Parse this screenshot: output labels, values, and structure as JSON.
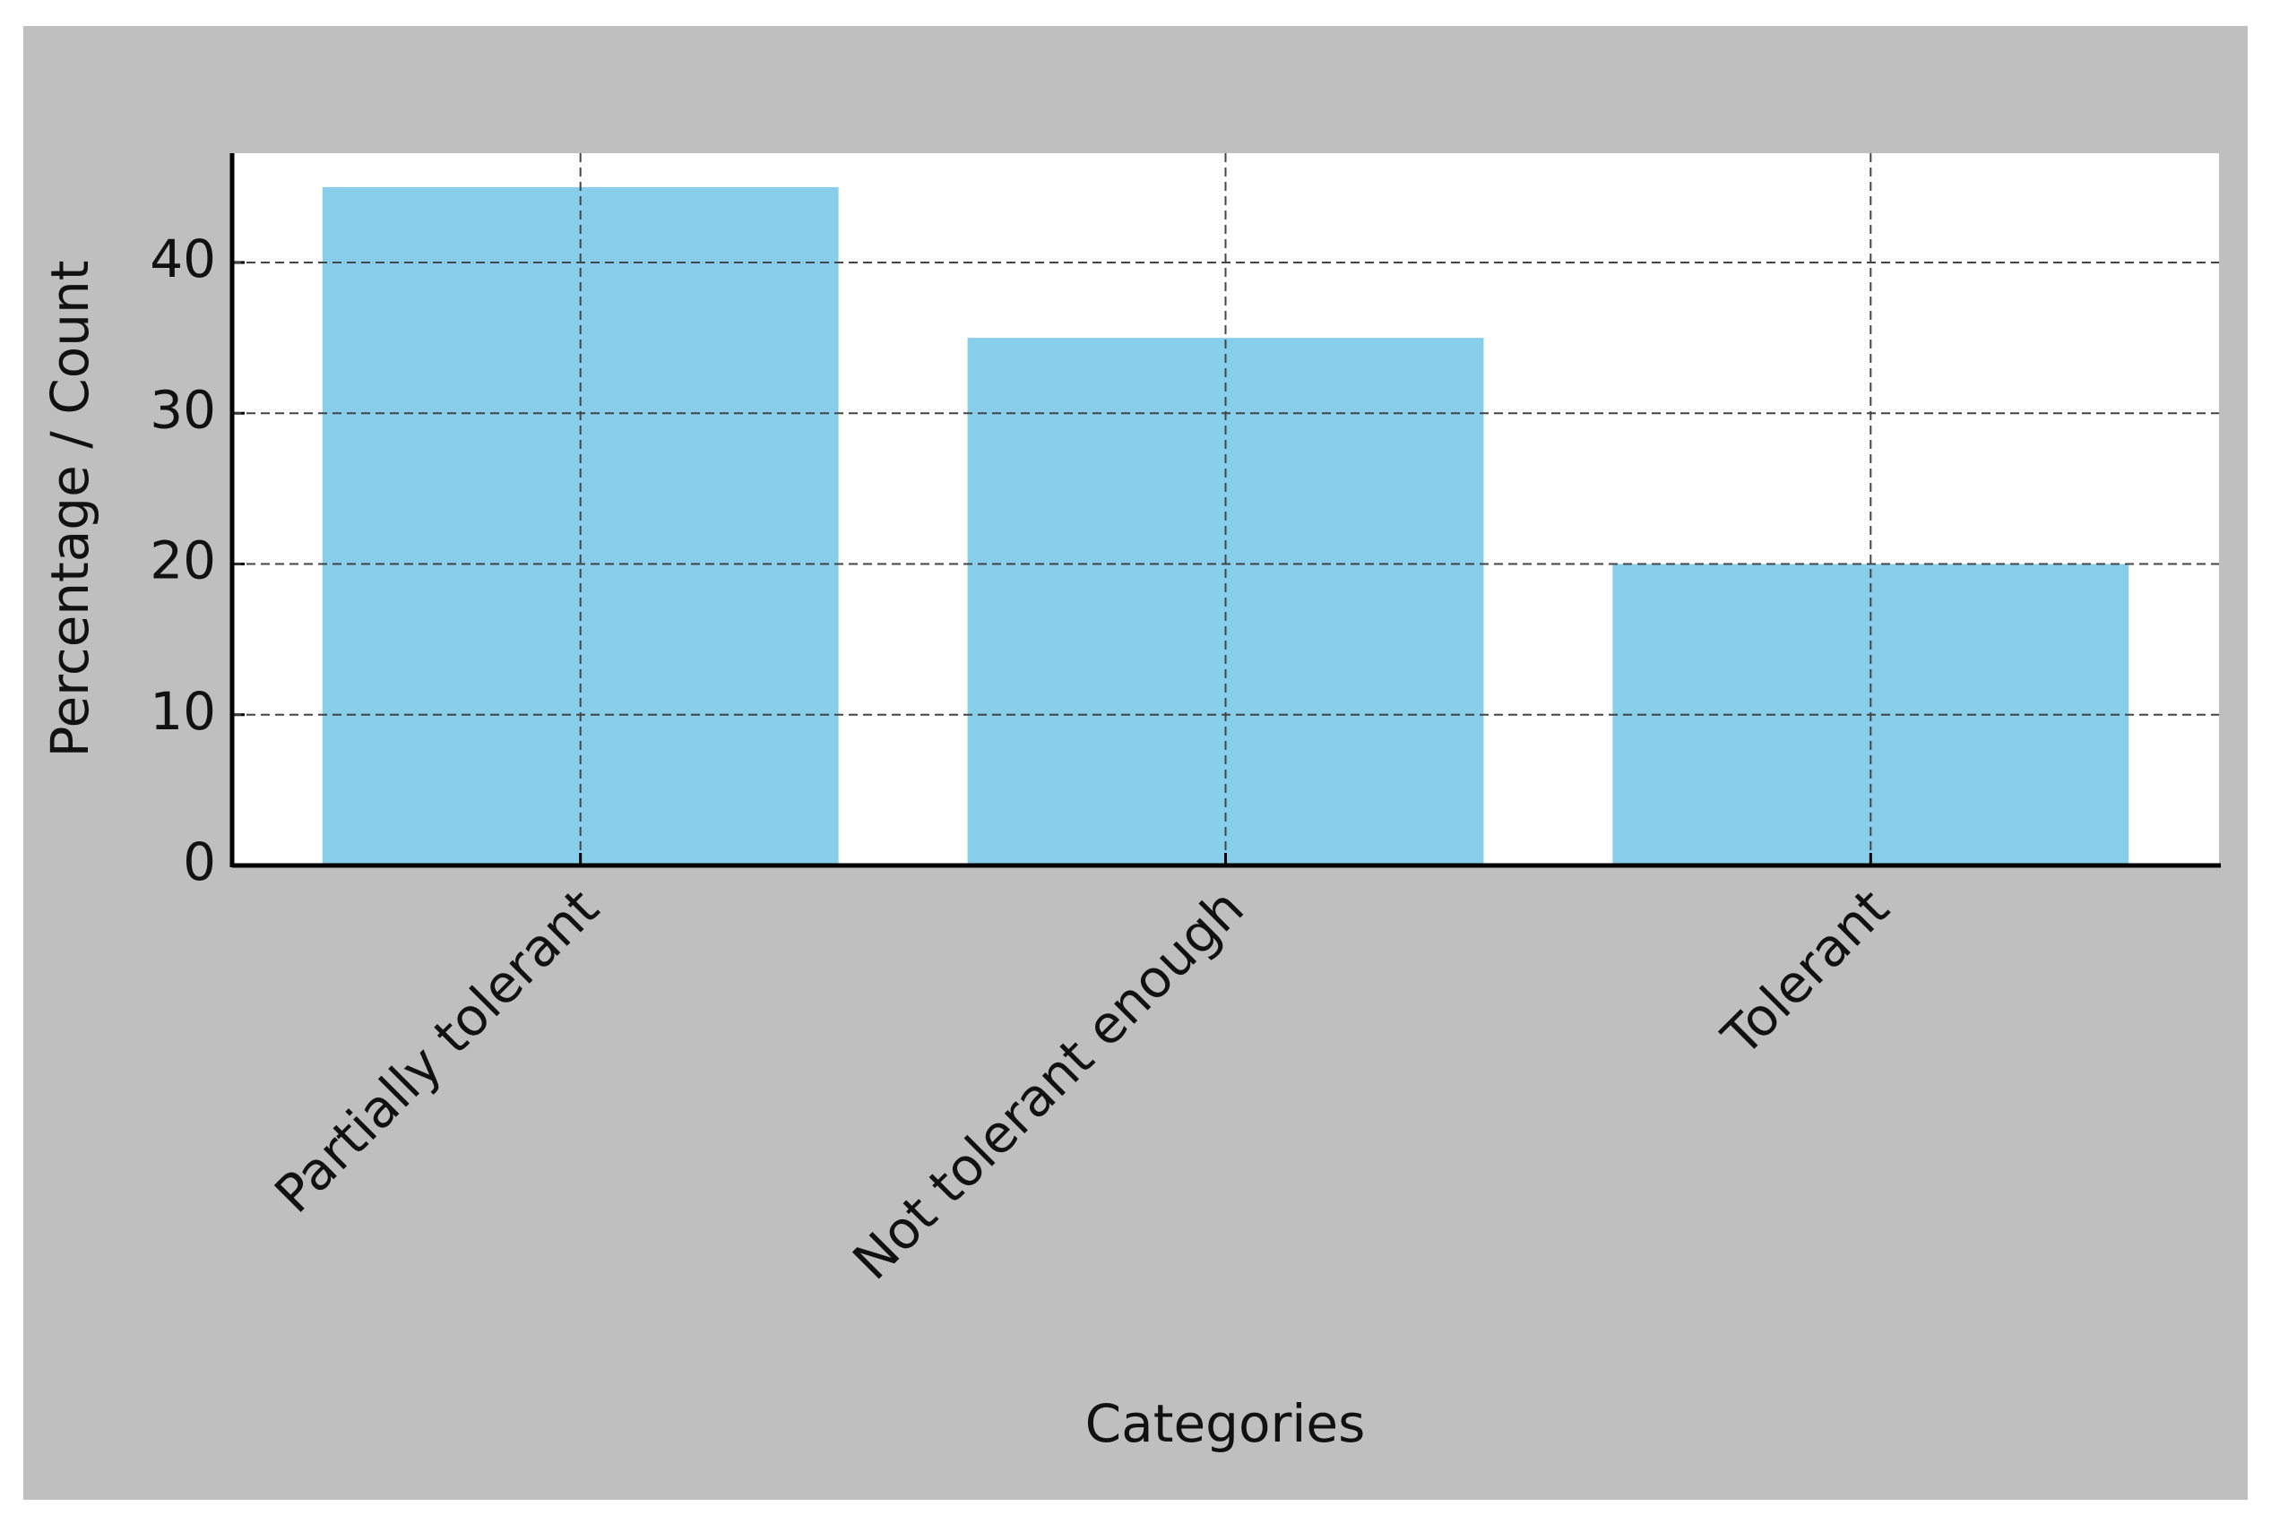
{
  "chart_data": {
    "type": "bar",
    "x_label": "Categories",
    "y_label": "Percentage / Count",
    "categories": [
      "Partially tolerant",
      "Not tolerant enough",
      "Tolerant"
    ],
    "values": [
      45,
      35,
      20
    ],
    "color": "#87ceeb",
    "ylim": [
      0,
      47.25
    ],
    "yticks": [
      0,
      10,
      20,
      30,
      40
    ],
    "grid": true
  }
}
